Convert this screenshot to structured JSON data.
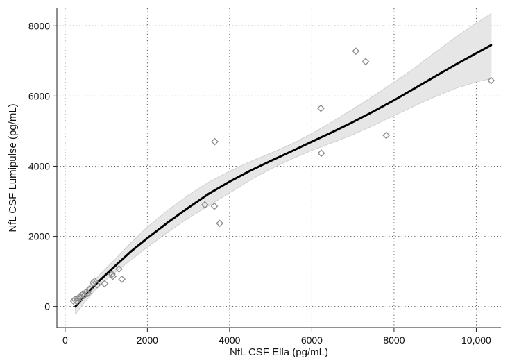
{
  "chart_data": {
    "type": "scatter",
    "title": "",
    "xlabel": "NfL CSF Ella (pg/mL)",
    "ylabel": "NfL CSF Lumipulse (pg/mL)",
    "xlim": [
      -200,
      10600
    ],
    "ylim": [
      -600,
      8500
    ],
    "xticks": [
      0,
      2000,
      4000,
      6000,
      8000,
      10000
    ],
    "xtick_labels": [
      "0",
      "2000",
      "4000",
      "6000",
      "8000",
      "10,000"
    ],
    "yticks": [
      0,
      2000,
      4000,
      6000,
      8000
    ],
    "ytick_labels": [
      "0",
      "2000",
      "4000",
      "6000",
      "8000"
    ],
    "grid": true,
    "legend": "none",
    "colors": {
      "points": "#8c8c8c",
      "fit_line": "#000000",
      "confidence_band": "#e6e6e6",
      "confidence_band_edge": "#c8c8c8",
      "grid": "#555555"
    },
    "series": [
      {
        "kind": "scatter",
        "marker": "diamond-open",
        "x": [
          200,
          240,
          280,
          320,
          350,
          390,
          420,
          470,
          500,
          550,
          600,
          680,
          720,
          780,
          960,
          1140,
          1160,
          1310,
          1380,
          3400,
          3630,
          3640,
          3760,
          6220,
          6230,
          7070,
          7310,
          7810,
          10360
        ],
        "y": [
          160,
          200,
          150,
          230,
          280,
          260,
          350,
          320,
          400,
          380,
          500,
          680,
          720,
          620,
          650,
          920,
          860,
          1070,
          780,
          2900,
          2860,
          4700,
          2370,
          5650,
          4370,
          7280,
          6980,
          4880,
          6440
        ]
      },
      {
        "kind": "line",
        "x": [
          250,
          500,
          800,
          1200,
          1600,
          2000,
          2500,
          3000,
          3500,
          4000,
          4500,
          5000,
          5500,
          6000,
          6500,
          7000,
          7500,
          8000,
          8500,
          9000,
          9500,
          10000,
          10360
        ],
        "y": [
          0,
          330,
          700,
          1140,
          1570,
          1950,
          2400,
          2820,
          3220,
          3560,
          3870,
          4150,
          4420,
          4700,
          4970,
          5260,
          5560,
          5880,
          6220,
          6560,
          6900,
          7220,
          7450
        ]
      },
      {
        "kind": "band",
        "x": [
          250,
          500,
          800,
          1200,
          1600,
          2000,
          2500,
          3000,
          3500,
          4000,
          4500,
          5000,
          5500,
          6000,
          6500,
          7000,
          7500,
          8000,
          8500,
          9000,
          9500,
          10000,
          10360
        ],
        "lower": [
          -220,
          160,
          560,
          960,
          1330,
          1690,
          2120,
          2520,
          2880,
          3240,
          3600,
          3920,
          4200,
          4450,
          4670,
          4900,
          5160,
          5440,
          5720,
          5980,
          6220,
          6400,
          6500
        ],
        "upper": [
          240,
          500,
          860,
          1330,
          1820,
          2270,
          2750,
          3180,
          3550,
          3860,
          4130,
          4370,
          4630,
          4930,
          5270,
          5630,
          6000,
          6400,
          6800,
          7250,
          7680,
          8080,
          8350
        ]
      }
    ]
  }
}
